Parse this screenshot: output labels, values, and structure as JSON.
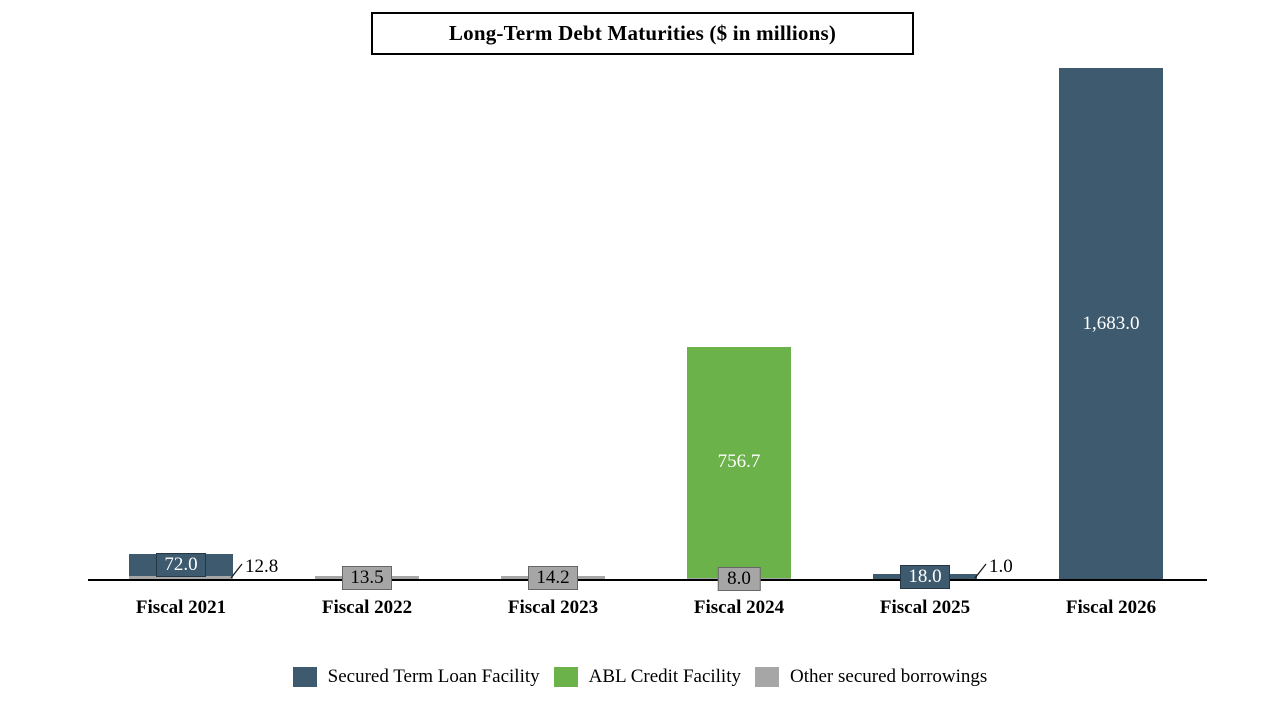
{
  "chart_data": {
    "type": "bar",
    "stacked": true,
    "title": "Long-Term Debt Maturities ($ in millions)",
    "categories": [
      "Fiscal 2021",
      "Fiscal 2022",
      "Fiscal 2023",
      "Fiscal 2024",
      "Fiscal 2025",
      "Fiscal 2026"
    ],
    "series": [
      {
        "name": "Secured Term Loan Facility",
        "color": "#3D5A6E",
        "values": [
          72.0,
          0,
          0,
          0,
          18.0,
          1683.0
        ]
      },
      {
        "name": "ABL Credit Facility",
        "color": "#6BB24A",
        "values": [
          0,
          0,
          0,
          756.7,
          0,
          0
        ]
      },
      {
        "name": "Other secured borrowings",
        "color": "#A6A6A6",
        "values": [
          12.8,
          13.5,
          14.2,
          8.0,
          1.0,
          0
        ]
      }
    ],
    "data_labels": [
      {
        "category": "Fiscal 2021",
        "series": "Secured Term Loan Facility",
        "text": "72.0",
        "placement": "box"
      },
      {
        "category": "Fiscal 2021",
        "series": "Other secured borrowings",
        "text": "12.8",
        "placement": "callout"
      },
      {
        "category": "Fiscal 2022",
        "series": "Other secured borrowings",
        "text": "13.5",
        "placement": "box"
      },
      {
        "category": "Fiscal 2023",
        "series": "Other secured borrowings",
        "text": "14.2",
        "placement": "box"
      },
      {
        "category": "Fiscal 2024",
        "series": "ABL Credit Facility",
        "text": "756.7",
        "placement": "inside"
      },
      {
        "category": "Fiscal 2024",
        "series": "Other secured borrowings",
        "text": "8.0",
        "placement": "box"
      },
      {
        "category": "Fiscal 2025",
        "series": "Secured Term Loan Facility",
        "text": "18.0",
        "placement": "box"
      },
      {
        "category": "Fiscal 2025",
        "series": "Other secured borrowings",
        "text": "1.0",
        "placement": "callout"
      },
      {
        "category": "Fiscal 2026",
        "series": "Secured Term Loan Facility",
        "text": "1,683.0",
        "placement": "inside"
      }
    ],
    "legend_position": "bottom",
    "value_axis_visible": false,
    "ylim": [
      0,
      1700
    ],
    "baseline_color": "#000000",
    "background_color": "#FFFFFF",
    "text_color": "#000000"
  }
}
